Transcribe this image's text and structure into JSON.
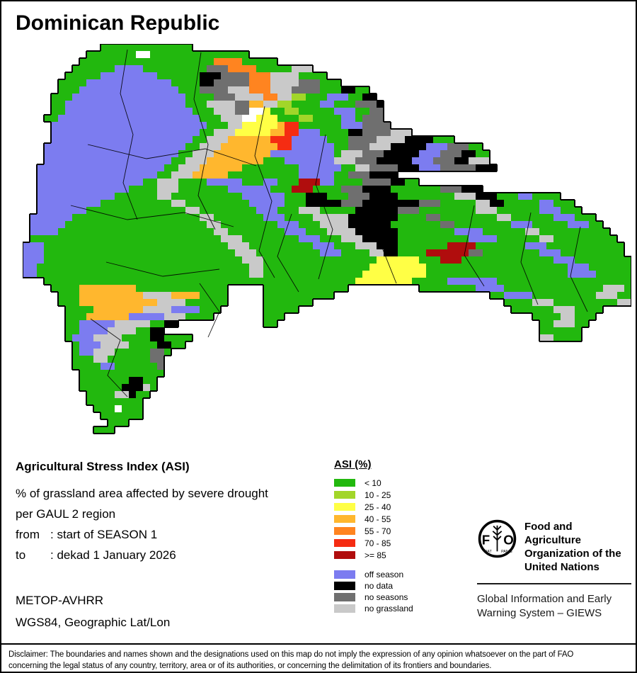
{
  "title": "Dominican Republic",
  "info": {
    "heading": "Agricultural Stress Index (ASI)",
    "line1": "% of grassland area affected by severe drought",
    "line2": "per GAUL 2 region",
    "from_label": "from",
    "from_value": ": start of SEASON 1",
    "to_label": "to",
    "to_value": ": dekad 1 January 2026",
    "sensor": "METOP-AVHRR",
    "projection": "WGS84, Geographic Lat/Lon"
  },
  "legend": {
    "title": "ASI (%)",
    "classes": [
      {
        "label": "< 10",
        "color": "#22b80e"
      },
      {
        "label": "10 - 25",
        "color": "#a2d629"
      },
      {
        "label": "25 - 40",
        "color": "#ffff45"
      },
      {
        "label": "40 - 55",
        "color": "#ffb72e"
      },
      {
        "label": "55 - 70",
        "color": "#ff8420"
      },
      {
        "label": "70 - 85",
        "color": "#f52c12"
      },
      {
        "label": ">= 85",
        "color": "#b00d0d"
      }
    ],
    "extra": [
      {
        "label": "off season",
        "color": "#7c7cf0"
      },
      {
        "label": "no data",
        "color": "#000000"
      },
      {
        "label": "no seasons",
        "color": "#6f6f6f"
      },
      {
        "label": "no grassland",
        "color": "#c9c9c9"
      }
    ]
  },
  "fao": {
    "letter_f": "F",
    "letter_o": "O",
    "motto_left": "FIAT",
    "motto_right": "PANIS",
    "org_lines": [
      "Food and Agriculture",
      "Organization of the",
      "United Nations"
    ],
    "giews_lines": [
      "Global Information and Early",
      "Warning System – GIEWS"
    ]
  },
  "disclaimer": {
    "line1": "Disclaimer: The boundaries and names shown and the designations used on this map do not imply the expression of any opinion whatsoever on the part of FAO",
    "line2": "concerning the legal status of any country, territory, area or of its authorities, or concerning the delimitation of its frontiers and boundaries."
  },
  "map": {
    "cell": 10,
    "cols": 86,
    "palette": {
      "g": "#22b80e",
      "G": "#a2d629",
      "y": "#ffff45",
      "o": "#ffb72e",
      "O": "#ff8420",
      "r": "#f52c12",
      "R": "#b00d0d",
      "b": "#7c7cf0",
      "k": "#000000",
      "d": "#6f6f6f",
      "s": "#c9c9c9",
      "w": "#ffffff"
    },
    "rows": [
      "11.13g",
      "9.7g2w14g",
      "8.19g4O5g",
      "7.6g4b9g3d4O5g3s",
      "6.5g8b6g3k4d3O4s4g",
      "5.4g12b4g2k5d3O4s3d3g",
      "5.3g14b3g4d3s3O3s4d3g2k2g",
      "4.3g16b4g3d4s2O2s2G3g3b2g2k",
      "4.2g17b3g4s2d2o2s2G4g2b3g3d1k",
      "4.2g18b3g3s2d2w1y2g2G5g3b2g2d",
      "3.2g20b3g3s2w3y3g2G4g2b1g3d",
      "4.22b3g2s5y1o2r6g3b4d",
      "4.21b2g3s5y2o2r3b4g2k4d3s",
      "4.20b2g3s6o3r5b3g4d4s4k3g",
      "3.20b2g3s8o2r6b2g3d3s5k3b3d2g",
      "3.19b2g3s8o9b1g3s3d5k3b3d2k2g",
      "3.18b2g3s8o3g7b3s3d5k3b3d2k3s",
      "2.18b2g3s6o8g6b2g2s4d3k3b5d3k",
      "2.17b2g3s5o10g5b2g3d4k",
      "2.15b2g3s4g5b3g2b3g3R2b4g4d2k2g",
      "2.13b4g3s7g6b3g3R4g3d4k7g3d3k",
      "2.11b6g2s10g6b3g3k3g3d4k8g3s3k3g2b4g",
      "2.9b10g2s9g5b3g5k3d8k3d5g2s2k5g2b3g",
      "2.7b14g2s8g3b3g3s5g6k3d8g3s6g3b3g",
      "1.6b18g2s7g3b4g5s7k4g2d8g2s6g3b3g",
      "1.5b20g2s8g3b3g4s6k7g2d8g3b5g3b2g",
      "1.4b22g2s8g3b3g4s6k8g4b6g2s10g",
      "1.27g3s8g3b3g3s5k10g4b6g2s9g",
      "3b26g3s9g3b3g3s3k7g4R7g3b11g",
      "3b27g3s9g3b4g2s2k4g6R2d8g3b9g",
      "3b28g3s16g6y3g3R13g3b8g",
      "2b30g2s15g8y20g3b6g",
      "2b30g2s14g9y20g4b5g",
      "3.44g8y5g7b19g",
      "4.4g8o13g5.12g10.8g4b14g3s1g",
      "5.3g9o4s4o4g5.10g22.2g4b9g3s2g",
      "5.3g11o4s6g5.7g27.4g3s9g2s",
      "6.4g7o4s4b3g6.5g30.6g3s4g",
      "6.3g6o5b3s4g7.3g35.4g2s3g",
      "6.2g5b5s2g2k12.2g37.2g3s2g",
      "6.2g4b4s2g2k53.6g",
      "6.1g3b4s4g2k4g49.2s4g",
      "7.1g3b4s4g2k2g",
      "7.1g2b3s5g2d1g",
      "7.3g2s6g2d",
      "7.4g2b6g1d",
      "8.12g",
      "8.7g2k2g",
      "8.6g3k1s1g",
      "9.4g2s1k2g",
      "9.8g",
      "10.3g1w3g",
      "11.6g",
      "12.3g",
      "10.3g"
    ]
  }
}
